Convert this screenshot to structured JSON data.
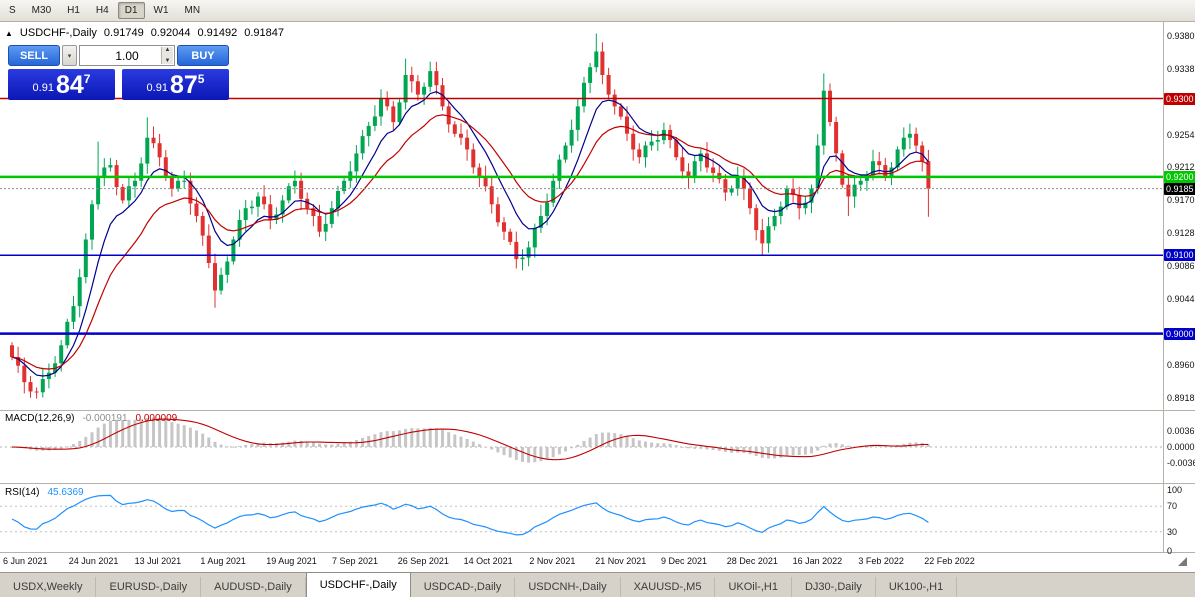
{
  "toolbar": {
    "timeframes": [
      {
        "label": "S",
        "active": false
      },
      {
        "label": "M30",
        "active": false
      },
      {
        "label": "H1",
        "active": false
      },
      {
        "label": "H4",
        "active": false
      },
      {
        "label": "D1",
        "active": true
      },
      {
        "label": "W1",
        "active": false
      },
      {
        "label": "MN",
        "active": false
      }
    ]
  },
  "chart_header": {
    "marker": "▲",
    "symbol": "USDCHF-,Daily",
    "open": "0.91749",
    "high": "0.92044",
    "low": "0.91492",
    "close": "0.91847"
  },
  "trade_panel": {
    "sell_label": "SELL",
    "buy_label": "BUY",
    "volume": "1.00",
    "bid_prefix": "0.91",
    "bid_big": "84",
    "bid_sup": "7",
    "ask_prefix": "0.91",
    "ask_big": "87",
    "ask_sup": "5"
  },
  "icons": {
    "chevron_down": "▾",
    "spinner_up": "▲",
    "spinner_down": "▼"
  },
  "panes": {
    "macd": {
      "title": "MACD(12,26,9)",
      "main_value": "-0.000191",
      "signal_value": "0.000009"
    },
    "rsi": {
      "title": "RSI(14)",
      "value": "45.6369"
    }
  },
  "price_axis": {
    "tick_values": [
      0.938,
      0.9338,
      0.9296,
      0.9254,
      0.9212,
      0.917,
      0.9128,
      0.9086,
      0.9044,
      0.9002,
      0.896,
      0.8918
    ],
    "badges": [
      {
        "text": "0.9300",
        "value": 0.93,
        "bg": "#C00000",
        "fg": "#FFFFFF"
      },
      {
        "text": "0.9200",
        "value": 0.92,
        "bg": "#00C800",
        "fg": "#FFFFFF"
      },
      {
        "text": "0.9185",
        "value": 0.9185,
        "bg": "#000000",
        "fg": "#FFFFFF"
      },
      {
        "text": "0.9100",
        "value": 0.91,
        "bg": "#0000C8",
        "fg": "#FFFFFF"
      },
      {
        "text": "0.9000",
        "value": 0.9,
        "bg": "#0000C8",
        "fg": "#FFFFFF"
      }
    ]
  },
  "macd_axis": [
    {
      "text": "0.0036",
      "value": 0.0036
    },
    {
      "text": "0.0000",
      "value": 0
    },
    {
      "text": "-0.0036",
      "value": -0.0036
    }
  ],
  "rsi_axis": [
    {
      "text": "100",
      "value": 100
    },
    {
      "text": "70",
      "value": 70
    },
    {
      "text": "30",
      "value": 30
    },
    {
      "text": "0",
      "value": 0
    }
  ],
  "tabs": [
    {
      "label": "USDX,Weekly",
      "active": false
    },
    {
      "label": "EURUSD-,Daily",
      "active": false
    },
    {
      "label": "AUDUSD-,Daily",
      "active": false
    },
    {
      "label": "USDCHF-,Daily",
      "active": true
    },
    {
      "label": "USDCAD-,Daily",
      "active": false
    },
    {
      "label": "USDCNH-,Daily",
      "active": false
    },
    {
      "label": "XAUUSD-,M5",
      "active": false
    },
    {
      "label": "UKOil-,H1",
      "active": false
    },
    {
      "label": "DJ30-,Daily",
      "active": false
    },
    {
      "label": "UK100-,H1",
      "active": false
    }
  ],
  "chart_data": {
    "type": "candlestick",
    "symbol": "USDCHF-",
    "timeframe": "Daily",
    "title": "USDCHF-,Daily",
    "ohlc_header": {
      "open": 0.91749,
      "high": 0.92044,
      "low": 0.91492,
      "close": 0.91847
    },
    "bid": 0.91847,
    "ask": 0.91875,
    "ylim": [
      0.8905,
      0.939
    ],
    "x_labels": [
      "6 Jun 2021",
      "24 Jun 2021",
      "13 Jul 2021",
      "1 Aug 2021",
      "19 Aug 2021",
      "7 Sep 2021",
      "26 Sep 2021",
      "14 Oct 2021",
      "2 Nov 2021",
      "21 Nov 2021",
      "9 Dec 2021",
      "28 Dec 2021",
      "16 Jan 2022",
      "3 Feb 2022",
      "22 Feb 2022"
    ],
    "first_open": 0.8985,
    "closes": [
      0.897,
      0.8959,
      0.8938,
      0.8926,
      0.8925,
      0.8942,
      0.895,
      0.8962,
      0.8985,
      0.9015,
      0.9035,
      0.9072,
      0.912,
      0.9165,
      0.92,
      0.9212,
      0.9215,
      0.9187,
      0.917,
      0.9188,
      0.9195,
      0.9217,
      0.925,
      0.9243,
      0.9225,
      0.92,
      0.9185,
      0.9195,
      0.9195,
      0.9166,
      0.915,
      0.9125,
      0.909,
      0.9055,
      0.9075,
      0.9092,
      0.912,
      0.9145,
      0.916,
      0.9162,
      0.9175,
      0.9165,
      0.9145,
      0.9152,
      0.917,
      0.9188,
      0.9195,
      0.9172,
      0.916,
      0.915,
      0.913,
      0.914,
      0.916,
      0.9182,
      0.9195,
      0.9207,
      0.923,
      0.9252,
      0.9265,
      0.9277,
      0.93,
      0.929,
      0.927,
      0.9295,
      0.933,
      0.9322,
      0.9305,
      0.9315,
      0.9335,
      0.9317,
      0.929,
      0.9267,
      0.9255,
      0.925,
      0.9235,
      0.9212,
      0.92,
      0.9188,
      0.9165,
      0.9142,
      0.913,
      0.9117,
      0.9095,
      0.9097,
      0.911,
      0.9135,
      0.915,
      0.9167,
      0.9195,
      0.9222,
      0.924,
      0.926,
      0.929,
      0.932,
      0.934,
      0.936,
      0.933,
      0.9305,
      0.929,
      0.9277,
      0.9255,
      0.9235,
      0.9225,
      0.924,
      0.9245,
      0.9247,
      0.926,
      0.9247,
      0.9225,
      0.9207,
      0.92,
      0.922,
      0.923,
      0.9212,
      0.9205,
      0.9197,
      0.918,
      0.9185,
      0.92,
      0.9185,
      0.916,
      0.9132,
      0.9115,
      0.9137,
      0.915,
      0.9162,
      0.9185,
      0.9177,
      0.916,
      0.9167,
      0.9185,
      0.924,
      0.931,
      0.927,
      0.923,
      0.919,
      0.9175,
      0.919,
      0.9195,
      0.9202,
      0.922,
      0.9215,
      0.92,
      0.9212,
      0.9235,
      0.925,
      0.9255,
      0.924,
      0.922,
      0.9185
    ],
    "extremes": {
      "4": [
        null,
        0.8917
      ],
      "14": [
        0.9245,
        null
      ],
      "22": [
        0.9276,
        null
      ],
      "33": [
        null,
        0.9033
      ],
      "64": [
        0.9351,
        null
      ],
      "68": [
        0.9347,
        null
      ],
      "82": [
        null,
        0.9083
      ],
      "84": [
        null,
        0.9086
      ],
      "95": [
        0.9383,
        null
      ],
      "122": [
        null,
        0.9099
      ],
      "132": [
        0.9332,
        null
      ],
      "136": [
        null,
        0.915
      ],
      "146": [
        0.9268,
        null
      ],
      "149": [
        null,
        0.9149
      ]
    },
    "colors": {
      "up": "#00A651",
      "down": "#E03131"
    },
    "overlays": [
      {
        "name": "ma-fast-line",
        "type": "ema",
        "period": 8,
        "color": "#00008B"
      },
      {
        "name": "ma-slow-line",
        "type": "ema",
        "period": 17,
        "color": "#C00000"
      }
    ],
    "hlines": [
      {
        "value": 0.93,
        "color": "#C00000",
        "width": 1.5,
        "style": "solid"
      },
      {
        "value": 0.92,
        "color": "#00C800",
        "width": 2.5,
        "style": "solid"
      },
      {
        "value": 0.9185,
        "color": "#909090",
        "width": 1,
        "style": "dotted"
      },
      {
        "value": 0.91,
        "color": "#0000C8",
        "width": 1.5,
        "style": "solid"
      },
      {
        "value": 0.9,
        "color": "#0000C8",
        "width": 2.5,
        "style": "solid"
      }
    ],
    "indicators": {
      "macd": {
        "fast": 12,
        "slow": 26,
        "signal": 9,
        "histogram_color": "#C6C6C6",
        "signal_color": "#C00000",
        "current_main": -0.000191,
        "current_signal": 9e-06
      },
      "rsi": {
        "period": 14,
        "color": "#1E90FF",
        "levels": [
          30,
          70
        ],
        "range": [
          0,
          100
        ],
        "current": 45.6369
      }
    }
  }
}
